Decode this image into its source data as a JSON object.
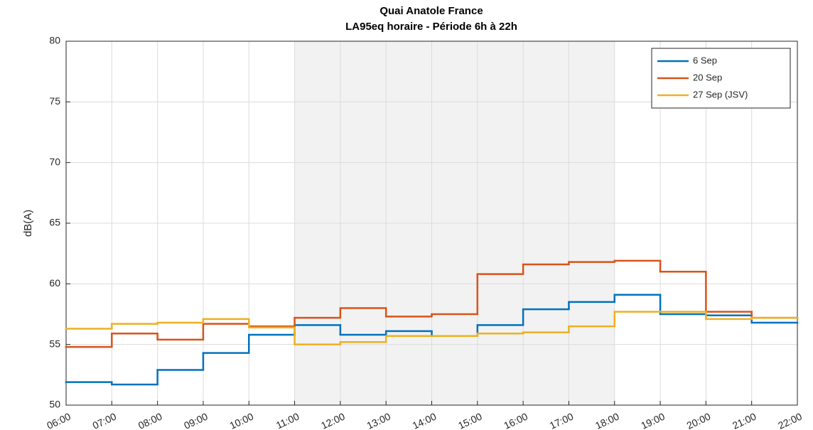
{
  "chart_data": {
    "type": "stairs",
    "title": "Quai Anatole France",
    "subtitle": "LA95eq horaire - Période 6h à 22h",
    "y_label": "dB(A)",
    "x": [
      6,
      7,
      8,
      9,
      10,
      11,
      12,
      13,
      14,
      15,
      16,
      17,
      18,
      19,
      20,
      21
    ],
    "xlim": [
      6,
      22
    ],
    "xticks": [
      {
        "value": 6,
        "label": "06:00"
      },
      {
        "value": 7,
        "label": "07:00"
      },
      {
        "value": 8,
        "label": "08:00"
      },
      {
        "value": 9,
        "label": "09:00"
      },
      {
        "value": 10,
        "label": "10:00"
      },
      {
        "value": 11,
        "label": "11:00"
      },
      {
        "value": 12,
        "label": "12:00"
      },
      {
        "value": 13,
        "label": "13:00"
      },
      {
        "value": 14,
        "label": "14:00"
      },
      {
        "value": 15,
        "label": "15:00"
      },
      {
        "value": 16,
        "label": "16:00"
      },
      {
        "value": 17,
        "label": "17:00"
      },
      {
        "value": 18,
        "label": "18:00"
      },
      {
        "value": 19,
        "label": "19:00"
      },
      {
        "value": 20,
        "label": "20:00"
      },
      {
        "value": 21,
        "label": "21:00"
      },
      {
        "value": 22,
        "label": "22:00"
      }
    ],
    "ylim": [
      50,
      80
    ],
    "yticks": [
      50,
      55,
      60,
      65,
      70,
      75,
      80
    ],
    "grid": true,
    "shaded_x": [
      11,
      18
    ],
    "legend": "northeast",
    "series": [
      {
        "name": "6 Sep",
        "color": "#0072bd",
        "values": [
          51.9,
          51.7,
          52.9,
          54.3,
          55.8,
          56.6,
          55.8,
          56.1,
          55.7,
          56.6,
          57.9,
          58.5,
          59.1,
          57.5,
          57.4,
          56.8
        ]
      },
      {
        "name": "20 Sep",
        "color": "#d95319",
        "values": [
          54.8,
          55.9,
          55.4,
          56.7,
          56.5,
          57.2,
          58.0,
          57.3,
          57.5,
          60.8,
          61.6,
          61.8,
          61.9,
          61.0,
          57.7,
          57.2
        ]
      },
      {
        "name": "27 Sep (JSV)",
        "color": "#edb120",
        "values": [
          56.3,
          56.7,
          56.8,
          57.1,
          56.4,
          55.0,
          55.2,
          55.7,
          55.7,
          55.9,
          56.0,
          56.5,
          57.7,
          57.7,
          57.1,
          57.2
        ]
      }
    ]
  }
}
